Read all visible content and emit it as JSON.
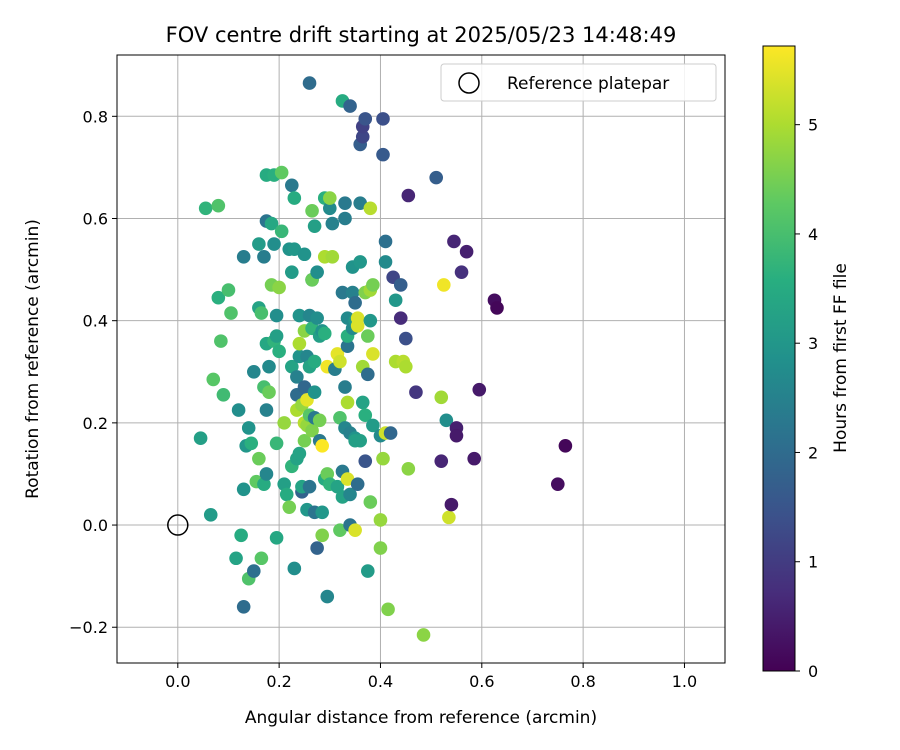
{
  "chart_data": {
    "type": "scatter",
    "title": "FOV centre drift starting at 2025/05/23 14:48:49",
    "xlabel": "Angular distance from reference (arcmin)",
    "ylabel": "Rotation from reference (arcmin)",
    "xlim": [
      -0.12,
      1.08
    ],
    "ylim": [
      -0.27,
      0.92
    ],
    "xticks": [
      0.0,
      0.2,
      0.4,
      0.6,
      0.8,
      1.0
    ],
    "xtick_labels": [
      "0.0",
      "0.2",
      "0.4",
      "0.6",
      "0.8",
      "1.0"
    ],
    "yticks": [
      -0.2,
      0.0,
      0.2,
      0.4,
      0.6,
      0.8
    ],
    "ytick_labels": [
      "−0.2",
      "0.0",
      "0.2",
      "0.4",
      "0.6",
      "0.8"
    ],
    "grid": true,
    "legend": {
      "placement": "upper-right",
      "entries": [
        "Reference platepar"
      ]
    },
    "reference_point": {
      "x": 0.0,
      "y": 0.0
    },
    "colorbar": {
      "label": "Hours from first FF file",
      "min": 0,
      "max": 5.72,
      "ticks": [
        0,
        1,
        2,
        3,
        4,
        5
      ],
      "tick_labels": [
        "0",
        "1",
        "2",
        "3",
        "4",
        "5"
      ],
      "colormap": "viridis"
    },
    "points": [
      {
        "x": 0.045,
        "y": 0.17,
        "h": 3.2
      },
      {
        "x": 0.055,
        "y": 0.62,
        "h": 3.7
      },
      {
        "x": 0.065,
        "y": 0.02,
        "h": 3.1
      },
      {
        "x": 0.07,
        "y": 0.285,
        "h": 4.2
      },
      {
        "x": 0.08,
        "y": 0.625,
        "h": 4.1
      },
      {
        "x": 0.08,
        "y": 0.445,
        "h": 3.6
      },
      {
        "x": 0.085,
        "y": 0.36,
        "h": 4.1
      },
      {
        "x": 0.09,
        "y": 0.255,
        "h": 3.9
      },
      {
        "x": 0.1,
        "y": 0.46,
        "h": 4.0
      },
      {
        "x": 0.105,
        "y": 0.415,
        "h": 4.1
      },
      {
        "x": 0.115,
        "y": -0.065,
        "h": 3.3
      },
      {
        "x": 0.12,
        "y": 0.225,
        "h": 2.8
      },
      {
        "x": 0.125,
        "y": -0.02,
        "h": 3.5
      },
      {
        "x": 0.13,
        "y": 0.525,
        "h": 2.4
      },
      {
        "x": 0.13,
        "y": 0.07,
        "h": 2.9
      },
      {
        "x": 0.13,
        "y": -0.16,
        "h": 2.0
      },
      {
        "x": 0.135,
        "y": 0.155,
        "h": 3.0
      },
      {
        "x": 0.14,
        "y": 0.19,
        "h": 2.9
      },
      {
        "x": 0.14,
        "y": -0.105,
        "h": 4.1
      },
      {
        "x": 0.145,
        "y": 0.16,
        "h": 3.6
      },
      {
        "x": 0.15,
        "y": 0.3,
        "h": 2.6
      },
      {
        "x": 0.15,
        "y": -0.09,
        "h": 2.1
      },
      {
        "x": 0.155,
        "y": 0.085,
        "h": 4.3
      },
      {
        "x": 0.16,
        "y": 0.425,
        "h": 3.3
      },
      {
        "x": 0.16,
        "y": 0.55,
        "h": 3.1
      },
      {
        "x": 0.16,
        "y": 0.13,
        "h": 4.4
      },
      {
        "x": 0.165,
        "y": 0.415,
        "h": 4.0
      },
      {
        "x": 0.165,
        "y": -0.065,
        "h": 4.2
      },
      {
        "x": 0.17,
        "y": 0.525,
        "h": 2.4
      },
      {
        "x": 0.17,
        "y": 0.08,
        "h": 3.5
      },
      {
        "x": 0.17,
        "y": 0.27,
        "h": 4.0
      },
      {
        "x": 0.175,
        "y": 0.355,
        "h": 3.4
      },
      {
        "x": 0.175,
        "y": 0.685,
        "h": 3.5
      },
      {
        "x": 0.175,
        "y": 0.595,
        "h": 2.2
      },
      {
        "x": 0.175,
        "y": 0.225,
        "h": 2.5
      },
      {
        "x": 0.175,
        "y": 0.1,
        "h": 2.6
      },
      {
        "x": 0.18,
        "y": 0.31,
        "h": 2.7
      },
      {
        "x": 0.18,
        "y": 0.26,
        "h": 4.4
      },
      {
        "x": 0.185,
        "y": 0.47,
        "h": 4.5
      },
      {
        "x": 0.185,
        "y": 0.59,
        "h": 3.4
      },
      {
        "x": 0.19,
        "y": 0.36,
        "h": 3.7
      },
      {
        "x": 0.19,
        "y": 0.685,
        "h": 3.6
      },
      {
        "x": 0.19,
        "y": 0.55,
        "h": 2.8
      },
      {
        "x": 0.195,
        "y": 0.41,
        "h": 2.8
      },
      {
        "x": 0.195,
        "y": 0.16,
        "h": 3.8
      },
      {
        "x": 0.195,
        "y": 0.37,
        "h": 3.2
      },
      {
        "x": 0.195,
        "y": -0.025,
        "h": 3.4
      },
      {
        "x": 0.2,
        "y": 0.465,
        "h": 4.7
      },
      {
        "x": 0.2,
        "y": 0.34,
        "h": 3.6
      },
      {
        "x": 0.205,
        "y": 0.69,
        "h": 4.3
      },
      {
        "x": 0.205,
        "y": 0.575,
        "h": 3.8
      },
      {
        "x": 0.21,
        "y": 0.08,
        "h": 3.2
      },
      {
        "x": 0.21,
        "y": 0.2,
        "h": 4.8
      },
      {
        "x": 0.215,
        "y": 0.06,
        "h": 3.5
      },
      {
        "x": 0.22,
        "y": 0.54,
        "h": 2.9
      },
      {
        "x": 0.22,
        "y": 0.035,
        "h": 4.5
      },
      {
        "x": 0.225,
        "y": 0.495,
        "h": 3.1
      },
      {
        "x": 0.225,
        "y": 0.665,
        "h": 2.3
      },
      {
        "x": 0.225,
        "y": 0.115,
        "h": 3.7
      },
      {
        "x": 0.225,
        "y": 0.31,
        "h": 3.3
      },
      {
        "x": 0.23,
        "y": 0.64,
        "h": 3.5
      },
      {
        "x": 0.23,
        "y": -0.085,
        "h": 2.8
      },
      {
        "x": 0.23,
        "y": 0.54,
        "h": 3.0
      },
      {
        "x": 0.235,
        "y": 0.13,
        "h": 3.3
      },
      {
        "x": 0.235,
        "y": 0.29,
        "h": 2.5
      },
      {
        "x": 0.235,
        "y": 0.255,
        "h": 2.0
      },
      {
        "x": 0.235,
        "y": 0.225,
        "h": 5.0
      },
      {
        "x": 0.24,
        "y": 0.33,
        "h": 2.9
      },
      {
        "x": 0.24,
        "y": 0.41,
        "h": 2.9
      },
      {
        "x": 0.24,
        "y": 0.355,
        "h": 5.0
      },
      {
        "x": 0.24,
        "y": 0.14,
        "h": 3.3
      },
      {
        "x": 0.245,
        "y": 0.065,
        "h": 1.8
      },
      {
        "x": 0.245,
        "y": 0.235,
        "h": 4.8
      },
      {
        "x": 0.245,
        "y": 0.075,
        "h": 3.3
      },
      {
        "x": 0.25,
        "y": 0.2,
        "h": 5.1
      },
      {
        "x": 0.25,
        "y": 0.165,
        "h": 4.5
      },
      {
        "x": 0.25,
        "y": 0.53,
        "h": 2.9
      },
      {
        "x": 0.25,
        "y": 0.27,
        "h": 1.9
      },
      {
        "x": 0.25,
        "y": 0.38,
        "h": 4.7
      },
      {
        "x": 0.255,
        "y": 0.195,
        "h": 4.8
      },
      {
        "x": 0.255,
        "y": 0.03,
        "h": 3.0
      },
      {
        "x": 0.255,
        "y": 0.245,
        "h": 5.5
      },
      {
        "x": 0.255,
        "y": 0.33,
        "h": 2.6
      },
      {
        "x": 0.26,
        "y": 0.075,
        "h": 2.2
      },
      {
        "x": 0.26,
        "y": 0.215,
        "h": 4.2
      },
      {
        "x": 0.26,
        "y": 0.865,
        "h": 2.0
      },
      {
        "x": 0.26,
        "y": 0.41,
        "h": 2.6
      },
      {
        "x": 0.26,
        "y": 0.31,
        "h": 3.3
      },
      {
        "x": 0.265,
        "y": 0.48,
        "h": 2.8
      },
      {
        "x": 0.265,
        "y": 0.185,
        "h": 4.6
      },
      {
        "x": 0.265,
        "y": 0.385,
        "h": 3.7
      },
      {
        "x": 0.265,
        "y": 0.615,
        "h": 4.4
      },
      {
        "x": 0.265,
        "y": 0.48,
        "h": 4.4
      },
      {
        "x": 0.27,
        "y": 0.32,
        "h": 3.5
      },
      {
        "x": 0.27,
        "y": 0.26,
        "h": 2.9
      },
      {
        "x": 0.27,
        "y": 0.21,
        "h": 2.3
      },
      {
        "x": 0.27,
        "y": 0.025,
        "h": 2.2
      },
      {
        "x": 0.27,
        "y": 0.585,
        "h": 3.2
      },
      {
        "x": 0.275,
        "y": 0.495,
        "h": 2.8
      },
      {
        "x": 0.275,
        "y": 0.405,
        "h": 2.8
      },
      {
        "x": 0.275,
        "y": -0.045,
        "h": 1.8
      },
      {
        "x": 0.28,
        "y": 0.37,
        "h": 3.2
      },
      {
        "x": 0.28,
        "y": 0.165,
        "h": 2.3
      },
      {
        "x": 0.28,
        "y": 0.205,
        "h": 4.5
      },
      {
        "x": 0.285,
        "y": 0.155,
        "h": 5.7
      },
      {
        "x": 0.285,
        "y": -0.02,
        "h": 4.6
      },
      {
        "x": 0.285,
        "y": 0.025,
        "h": 3.0
      },
      {
        "x": 0.285,
        "y": 0.38,
        "h": 2.9
      },
      {
        "x": 0.29,
        "y": 0.09,
        "h": 3.5
      },
      {
        "x": 0.29,
        "y": 0.64,
        "h": 3.6
      },
      {
        "x": 0.29,
        "y": 0.375,
        "h": 3.6
      },
      {
        "x": 0.29,
        "y": 0.525,
        "h": 5.0
      },
      {
        "x": 0.295,
        "y": -0.14,
        "h": 2.6
      },
      {
        "x": 0.295,
        "y": 0.31,
        "h": 5.6
      },
      {
        "x": 0.295,
        "y": 0.1,
        "h": 4.4
      },
      {
        "x": 0.3,
        "y": 0.62,
        "h": 2.7
      },
      {
        "x": 0.3,
        "y": 0.08,
        "h": 3.7
      },
      {
        "x": 0.3,
        "y": 0.64,
        "h": 4.7
      },
      {
        "x": 0.305,
        "y": 0.59,
        "h": 2.5
      },
      {
        "x": 0.305,
        "y": 0.525,
        "h": 4.9
      },
      {
        "x": 0.31,
        "y": 0.305,
        "h": 2.4
      },
      {
        "x": 0.315,
        "y": 0.075,
        "h": 3.3
      },
      {
        "x": 0.315,
        "y": 0.335,
        "h": 5.5
      },
      {
        "x": 0.32,
        "y": 0.32,
        "h": 5.3
      },
      {
        "x": 0.32,
        "y": 0.21,
        "h": 4.1
      },
      {
        "x": 0.32,
        "y": -0.01,
        "h": 4.3
      },
      {
        "x": 0.325,
        "y": 0.055,
        "h": 3.3
      },
      {
        "x": 0.325,
        "y": 0.83,
        "h": 3.5
      },
      {
        "x": 0.325,
        "y": 0.105,
        "h": 2.3
      },
      {
        "x": 0.325,
        "y": 0.455,
        "h": 2.3
      },
      {
        "x": 0.33,
        "y": 0.19,
        "h": 2.6
      },
      {
        "x": 0.33,
        "y": 0.6,
        "h": 2.4
      },
      {
        "x": 0.33,
        "y": 0.27,
        "h": 2.4
      },
      {
        "x": 0.33,
        "y": 0.63,
        "h": 2.3
      },
      {
        "x": 0.335,
        "y": 0.405,
        "h": 2.7
      },
      {
        "x": 0.335,
        "y": 0.24,
        "h": 5.0
      },
      {
        "x": 0.335,
        "y": 0.35,
        "h": 2.2
      },
      {
        "x": 0.335,
        "y": 0.09,
        "h": 5.4
      },
      {
        "x": 0.335,
        "y": 0.37,
        "h": 3.6
      },
      {
        "x": 0.34,
        "y": 0.18,
        "h": 2.5
      },
      {
        "x": 0.34,
        "y": 0.06,
        "h": 2.6
      },
      {
        "x": 0.34,
        "y": 0.0,
        "h": 2.2
      },
      {
        "x": 0.34,
        "y": 0.82,
        "h": 1.8
      },
      {
        "x": 0.345,
        "y": 0.385,
        "h": 2.7
      },
      {
        "x": 0.345,
        "y": 0.455,
        "h": 2.5
      },
      {
        "x": 0.345,
        "y": 0.505,
        "h": 2.9
      },
      {
        "x": 0.35,
        "y": 0.17,
        "h": 2.9
      },
      {
        "x": 0.35,
        "y": -0.01,
        "h": 5.4
      },
      {
        "x": 0.35,
        "y": 0.4,
        "h": 3.0
      },
      {
        "x": 0.35,
        "y": 0.435,
        "h": 2.0
      },
      {
        "x": 0.35,
        "y": 0.165,
        "h": 3.2
      },
      {
        "x": 0.355,
        "y": 0.39,
        "h": 5.4
      },
      {
        "x": 0.355,
        "y": 0.405,
        "h": 5.4
      },
      {
        "x": 0.355,
        "y": 0.08,
        "h": 2.0
      },
      {
        "x": 0.36,
        "y": 0.745,
        "h": 1.7
      },
      {
        "x": 0.36,
        "y": 0.63,
        "h": 2.4
      },
      {
        "x": 0.36,
        "y": 0.515,
        "h": 3.0
      },
      {
        "x": 0.36,
        "y": 0.165,
        "h": 3.2
      },
      {
        "x": 0.365,
        "y": 0.24,
        "h": 3.3
      },
      {
        "x": 0.365,
        "y": 0.31,
        "h": 4.9
      },
      {
        "x": 0.365,
        "y": 0.76,
        "h": 1.2
      },
      {
        "x": 0.365,
        "y": 0.78,
        "h": 1.1
      },
      {
        "x": 0.37,
        "y": 0.455,
        "h": 4.6
      },
      {
        "x": 0.37,
        "y": 0.215,
        "h": 3.6
      },
      {
        "x": 0.37,
        "y": 0.795,
        "h": 1.5
      },
      {
        "x": 0.37,
        "y": 0.125,
        "h": 1.5
      },
      {
        "x": 0.375,
        "y": 0.295,
        "h": 2.0
      },
      {
        "x": 0.375,
        "y": -0.09,
        "h": 3.1
      },
      {
        "x": 0.375,
        "y": 0.37,
        "h": 4.4
      },
      {
        "x": 0.38,
        "y": 0.62,
        "h": 5.1
      },
      {
        "x": 0.38,
        "y": 0.46,
        "h": 4.9
      },
      {
        "x": 0.38,
        "y": 0.045,
        "h": 4.4
      },
      {
        "x": 0.38,
        "y": 0.4,
        "h": 3.0
      },
      {
        "x": 0.385,
        "y": 0.335,
        "h": 5.4
      },
      {
        "x": 0.385,
        "y": 0.47,
        "h": 4.5
      },
      {
        "x": 0.385,
        "y": 0.195,
        "h": 3.1
      },
      {
        "x": 0.4,
        "y": 0.01,
        "h": 4.8
      },
      {
        "x": 0.4,
        "y": -0.045,
        "h": 4.6
      },
      {
        "x": 0.4,
        "y": 0.175,
        "h": 2.7
      },
      {
        "x": 0.405,
        "y": 0.795,
        "h": 1.4
      },
      {
        "x": 0.405,
        "y": 0.725,
        "h": 1.6
      },
      {
        "x": 0.405,
        "y": 0.13,
        "h": 4.8
      },
      {
        "x": 0.41,
        "y": 0.18,
        "h": 5.3
      },
      {
        "x": 0.41,
        "y": 0.555,
        "h": 2.1
      },
      {
        "x": 0.41,
        "y": 0.515,
        "h": 2.7
      },
      {
        "x": 0.415,
        "y": -0.165,
        "h": 4.6
      },
      {
        "x": 0.42,
        "y": 0.18,
        "h": 1.9
      },
      {
        "x": 0.425,
        "y": 0.485,
        "h": 1.2
      },
      {
        "x": 0.43,
        "y": 0.44,
        "h": 3.0
      },
      {
        "x": 0.43,
        "y": 0.32,
        "h": 5.0
      },
      {
        "x": 0.44,
        "y": 0.47,
        "h": 1.7
      },
      {
        "x": 0.44,
        "y": 0.405,
        "h": 0.7
      },
      {
        "x": 0.445,
        "y": 0.32,
        "h": 5.1
      },
      {
        "x": 0.45,
        "y": 0.365,
        "h": 1.4
      },
      {
        "x": 0.45,
        "y": 0.31,
        "h": 5.0
      },
      {
        "x": 0.455,
        "y": 0.645,
        "h": 0.6
      },
      {
        "x": 0.455,
        "y": 0.11,
        "h": 4.7
      },
      {
        "x": 0.47,
        "y": 0.26,
        "h": 0.9
      },
      {
        "x": 0.485,
        "y": -0.215,
        "h": 4.7
      },
      {
        "x": 0.51,
        "y": 0.68,
        "h": 1.7
      },
      {
        "x": 0.52,
        "y": 0.25,
        "h": 4.9
      },
      {
        "x": 0.52,
        "y": 0.125,
        "h": 0.6
      },
      {
        "x": 0.525,
        "y": 0.47,
        "h": 5.6
      },
      {
        "x": 0.53,
        "y": 0.205,
        "h": 2.8
      },
      {
        "x": 0.535,
        "y": 0.015,
        "h": 5.3
      },
      {
        "x": 0.54,
        "y": 0.04,
        "h": 0.4
      },
      {
        "x": 0.545,
        "y": 0.555,
        "h": 0.6
      },
      {
        "x": 0.55,
        "y": 0.19,
        "h": 0.5
      },
      {
        "x": 0.55,
        "y": 0.175,
        "h": 0.4
      },
      {
        "x": 0.56,
        "y": 0.495,
        "h": 0.8
      },
      {
        "x": 0.57,
        "y": 0.535,
        "h": 0.5
      },
      {
        "x": 0.585,
        "y": 0.13,
        "h": 0.4
      },
      {
        "x": 0.595,
        "y": 0.265,
        "h": 0.4
      },
      {
        "x": 0.625,
        "y": 0.44,
        "h": 0.2
      },
      {
        "x": 0.63,
        "y": 0.425,
        "h": 0.1
      },
      {
        "x": 0.75,
        "y": 0.08,
        "h": 0.2
      },
      {
        "x": 0.765,
        "y": 0.155,
        "h": 0.1
      }
    ]
  }
}
